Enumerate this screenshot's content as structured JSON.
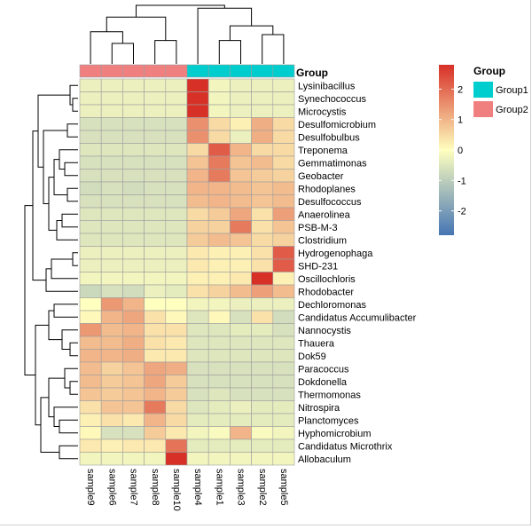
{
  "chart_data": {
    "type": "heatmap",
    "title": "",
    "annotation_title": "Group",
    "legend_title": "Group",
    "samples": [
      "sample9",
      "sample6",
      "sample7",
      "sample8",
      "sample10",
      "sample4",
      "sample1",
      "sample3",
      "sample2",
      "sample5"
    ],
    "sample_groups": [
      "Group2",
      "Group2",
      "Group2",
      "Group2",
      "Group2",
      "Group1",
      "Group1",
      "Group1",
      "Group1",
      "Group1"
    ],
    "groups": [
      {
        "name": "Group1",
        "color": "#00CDCD"
      },
      {
        "name": "Group2",
        "color": "#F08080"
      }
    ],
    "rows": [
      "Lysinibacillus",
      "Synechococcus",
      "Microcystis",
      "Desulfomicrobium",
      "Desulfobulbus",
      "Treponema",
      "Gemmatimonas",
      "Geobacter",
      "Rhodoplanes",
      "Desulfococcus",
      "Anaerolinea",
      "PSB-M-3",
      "Clostridium",
      "Hydrogenophaga",
      "SHD-231",
      "Oscillochloris",
      "Rhodobacter",
      "Dechloromonas",
      "Candidatus Accumulibacter",
      "Nannocystis",
      "Thauera",
      "Dok59",
      "Paracoccus",
      "Dokdonella",
      "Thermomonas",
      "Nitrospira",
      "Planctomyces",
      "Hyphomicrobium",
      "Candidatus Microthrix",
      "Allobaculum"
    ],
    "values": [
      [
        -0.3,
        -0.3,
        -0.3,
        -0.3,
        -0.3,
        2.8,
        -0.2,
        -0.3,
        -0.3,
        -0.3
      ],
      [
        -0.3,
        -0.3,
        -0.3,
        -0.3,
        -0.3,
        2.8,
        -0.2,
        -0.3,
        -0.3,
        -0.3
      ],
      [
        -0.3,
        -0.3,
        -0.3,
        -0.3,
        -0.3,
        2.8,
        -0.2,
        -0.3,
        -0.3,
        -0.3
      ],
      [
        -0.6,
        -0.6,
        -0.6,
        -0.6,
        -0.6,
        1.5,
        0.5,
        0.2,
        1.1,
        0.5
      ],
      [
        -0.6,
        -0.6,
        -0.6,
        -0.6,
        -0.6,
        1.5,
        0.5,
        -0.3,
        1.1,
        0.5
      ],
      [
        -0.5,
        -0.5,
        -0.5,
        -0.5,
        -0.5,
        0.5,
        2.2,
        1.0,
        0.5,
        0.5
      ],
      [
        -0.6,
        -0.6,
        -0.6,
        -0.6,
        -0.6,
        0.8,
        1.8,
        0.8,
        0.9,
        0.5
      ],
      [
        -0.6,
        -0.6,
        -0.6,
        -0.6,
        -0.6,
        1.0,
        1.8,
        0.8,
        0.7,
        0.6
      ],
      [
        -0.7,
        -0.6,
        -0.7,
        -0.6,
        -0.6,
        1.0,
        1.0,
        0.9,
        0.8,
        0.9
      ],
      [
        -0.6,
        -0.6,
        -0.6,
        -0.6,
        -0.6,
        0.9,
        1.0,
        0.9,
        0.8,
        0.9
      ],
      [
        -0.5,
        -0.5,
        -0.5,
        -0.5,
        -0.5,
        0.5,
        0.7,
        1.2,
        0.4,
        1.3
      ],
      [
        -0.5,
        -0.5,
        -0.5,
        -0.5,
        -0.5,
        0.6,
        0.6,
        1.8,
        0.4,
        0.8
      ],
      [
        -0.5,
        -0.5,
        -0.5,
        -0.5,
        -0.5,
        0.7,
        0.9,
        0.8,
        0.5,
        0.6
      ],
      [
        -0.3,
        -0.3,
        -0.3,
        -0.3,
        -0.3,
        0.3,
        0.2,
        0.2,
        0.4,
        2.2
      ],
      [
        -0.3,
        -0.3,
        -0.3,
        -0.3,
        -0.3,
        0.3,
        0.2,
        0.2,
        0.4,
        2.2
      ],
      [
        -0.2,
        -0.2,
        -0.2,
        -0.2,
        -0.2,
        0.2,
        0.2,
        0.3,
        2.8,
        0.2
      ],
      [
        -0.8,
        -0.6,
        -0.7,
        -0.3,
        -0.4,
        0.4,
        0.6,
        0.9,
        1.3,
        0.9
      ],
      [
        0.0,
        1.4,
        1.0,
        0.0,
        0.0,
        -0.2,
        -0.2,
        -0.3,
        -0.3,
        -0.3
      ],
      [
        0.1,
        1.0,
        1.2,
        0.4,
        0.1,
        -0.5,
        0.1,
        -0.6,
        0.4,
        -0.7
      ],
      [
        1.4,
        0.9,
        1.0,
        0.4,
        0.4,
        -0.5,
        -0.5,
        -0.4,
        -0.4,
        -0.6
      ],
      [
        0.9,
        0.9,
        1.1,
        0.4,
        0.3,
        -0.5,
        -0.5,
        -0.5,
        -0.5,
        -0.5
      ],
      [
        1.0,
        1.0,
        1.1,
        0.3,
        0.3,
        -0.5,
        -0.5,
        -0.5,
        -0.5,
        -0.5
      ],
      [
        0.9,
        0.6,
        0.8,
        1.2,
        1.1,
        -0.6,
        -0.6,
        -0.6,
        -0.6,
        -0.6
      ],
      [
        0.9,
        0.7,
        0.8,
        1.2,
        0.7,
        -0.6,
        -0.6,
        -0.6,
        -0.6,
        -0.6
      ],
      [
        0.8,
        0.7,
        0.8,
        1.0,
        0.7,
        -0.6,
        -0.5,
        -0.6,
        -0.6,
        -0.6
      ],
      [
        0.4,
        0.8,
        0.8,
        1.8,
        0.5,
        -0.5,
        -0.4,
        -0.3,
        -0.4,
        -0.4
      ],
      [
        0.2,
        0.4,
        0.3,
        1.0,
        0.5,
        -0.4,
        -0.4,
        -0.4,
        -0.4,
        -0.4
      ],
      [
        0.1,
        -0.6,
        -0.6,
        0.7,
        0.3,
        -0.2,
        -0.1,
        1.0,
        -0.1,
        -0.2
      ],
      [
        0.3,
        0.2,
        0.3,
        0.3,
        1.9,
        -0.4,
        -0.4,
        -0.4,
        -0.4,
        -0.4
      ],
      [
        -0.2,
        -0.2,
        -0.2,
        -0.2,
        2.8,
        -0.2,
        -0.2,
        -0.2,
        -0.2,
        -0.2
      ]
    ],
    "colorbar": {
      "min": -2.8,
      "max": 2.8,
      "ticks": [
        2,
        1,
        0,
        -1,
        -2
      ],
      "colors": [
        "#4575B4",
        "#FFFFBF",
        "#D73027"
      ]
    }
  }
}
